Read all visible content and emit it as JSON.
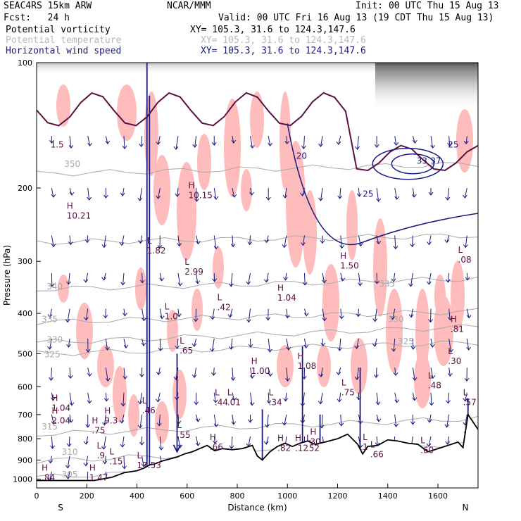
{
  "header": {
    "model": "SEAC4RS 15km ARW",
    "org": "NCAR/MMM",
    "init": "Init: 00 UTC Thu 15 Aug 13",
    "fcst": "Fcst:   24 h",
    "valid": "Valid: 00 UTC Fri 16 Aug 13 (19 CDT Thu 15 Aug 13)",
    "fields": [
      {
        "name": "Potential vorticity",
        "xy": "XY= 105.3, 31.6 to 124.3,147.6",
        "color": "#000000"
      },
      {
        "name": "Potential temperature",
        "xy": "XY= 105.3, 31.6 to 124.3,147.6",
        "color": "#b8b8b8"
      },
      {
        "name": "Horizontal wind speed",
        "xy": "XY= 105.3, 31.6 to 124.3,147.6",
        "color": "#1a1a80"
      }
    ]
  },
  "colors": {
    "pv_fill": "#ffbcbc",
    "isentrope": "#a9a9a9",
    "wind": "#1a1a80",
    "terrain": "#000000",
    "pv_contour": "#5a1040"
  },
  "chart_data": {
    "type": "cross-section",
    "xlabel": "Distance (km)",
    "ylabel": "Pressure (hPa)",
    "xlim": [
      0,
      1760
    ],
    "ylim": [
      1050,
      100
    ],
    "y_scale": "log",
    "x_ticks": [
      0,
      200,
      400,
      600,
      800,
      1000,
      1200,
      1400,
      1600
    ],
    "y_ticks": [
      100,
      200,
      300,
      400,
      500,
      600,
      700,
      800,
      900,
      1000
    ],
    "x_end_labels": {
      "left": "S",
      "right": "N"
    },
    "terrain": {
      "x": [
        0,
        230,
        300,
        350,
        400,
        430,
        450,
        470,
        500,
        530,
        560,
        590,
        620,
        650,
        680,
        710,
        740,
        780,
        820,
        860,
        880,
        900,
        930,
        960,
        990,
        1020,
        1050,
        1080,
        1110,
        1150,
        1200,
        1240,
        1280,
        1300,
        1320,
        1360,
        1400,
        1440,
        1480,
        1520,
        1560,
        1600,
        1640,
        1680,
        1700,
        1720,
        1760
      ],
      "p": [
        1008,
        1008,
        990,
        965,
        955,
        940,
        925,
        920,
        905,
        895,
        885,
        870,
        860,
        845,
        830,
        855,
        845,
        850,
        845,
        830,
        880,
        900,
        860,
        835,
        820,
        835,
        820,
        810,
        825,
        815,
        800,
        780,
        825,
        870,
        835,
        830,
        805,
        810,
        820,
        825,
        860,
        845,
        830,
        815,
        840,
        700,
        760
      ]
    },
    "isentropes": [
      {
        "theta": 305,
        "p_left": 990,
        "p_right": 890
      },
      {
        "theta": 310,
        "p_left": 905,
        "p_right": 820
      },
      {
        "theta": 315,
        "p_left": 780,
        "p_right": 715
      },
      {
        "theta": 325,
        "p_left": 500,
        "p_right": 470
      },
      {
        "theta": 330,
        "p_left": 470,
        "p_right": 430
      },
      {
        "theta": 335,
        "p_left": 420,
        "p_right": 395
      },
      {
        "theta": 340,
        "p_left": 350,
        "p_right": 330
      },
      {
        "theta": 345,
        "p_left": 270,
        "p_right": 260
      },
      {
        "theta": 350,
        "p_left": 185,
        "p_right": 175
      }
    ],
    "contour_labels": [
      {
        "text": "305",
        "x": 100,
        "p": 990,
        "color": "#a9a9a9"
      },
      {
        "text": "310",
        "x": 100,
        "p": 875,
        "color": "#a9a9a9"
      },
      {
        "text": "315",
        "x": 20,
        "p": 760,
        "color": "#a9a9a9"
      },
      {
        "text": "325",
        "x": 30,
        "p": 510,
        "color": "#a9a9a9"
      },
      {
        "text": "330",
        "x": 40,
        "p": 470,
        "color": "#a9a9a9"
      },
      {
        "text": "335",
        "x": 20,
        "p": 420,
        "color": "#a9a9a9"
      },
      {
        "text": "340",
        "x": 40,
        "p": 350,
        "color": "#a9a9a9"
      },
      {
        "text": "350",
        "x": 110,
        "p": 178,
        "color": "#a9a9a9"
      },
      {
        "text": "335",
        "x": 1365,
        "p": 345,
        "color": "#a9a9a9"
      },
      {
        "text": "330",
        "x": 1400,
        "p": 420,
        "color": "#a9a9a9"
      },
      {
        "text": "325",
        "x": 1440,
        "p": 475,
        "color": "#a9a9a9"
      },
      {
        "text": "1.5",
        "x": 55,
        "p": 160,
        "color": "#5a1040"
      },
      {
        "text": "20",
        "x": 1035,
        "p": 170,
        "color": "#1a1a80"
      },
      {
        "text": "25",
        "x": 1300,
        "p": 210,
        "color": "#1a1a80"
      },
      {
        "text": "33",
        "x": 1515,
        "p": 175,
        "color": "#1a1a80"
      },
      {
        "text": "37",
        "x": 1570,
        "p": 175,
        "color": "#1a1a80"
      },
      {
        "text": "25",
        "x": 1640,
        "p": 160,
        "color": "#1a1a80"
      }
    ],
    "extrema": [
      {
        "type": "H",
        "value": "10.21",
        "x": 120,
        "p": 235
      },
      {
        "type": "L",
        "value": "1.82",
        "x": 440,
        "p": 285
      },
      {
        "type": "H",
        "value": "10.15",
        "x": 605,
        "p": 210
      },
      {
        "type": "L",
        "value": "2.99",
        "x": 590,
        "p": 320
      },
      {
        "type": "L",
        "value": "1.0",
        "x": 510,
        "p": 410
      },
      {
        "type": "L",
        "value": ".42",
        "x": 720,
        "p": 390
      },
      {
        "type": "H",
        "value": "1.04",
        "x": 960,
        "p": 370
      },
      {
        "type": "H",
        "value": "1.50",
        "x": 1210,
        "p": 310
      },
      {
        "type": "L",
        "value": ".08",
        "x": 1680,
        "p": 300
      },
      {
        "type": "H",
        "value": ".81",
        "x": 1650,
        "p": 440
      },
      {
        "type": "L",
        "value": ".65",
        "x": 570,
        "p": 495
      },
      {
        "type": "H",
        "value": "1.00",
        "x": 855,
        "p": 555
      },
      {
        "type": "H",
        "value": "1.08",
        "x": 1040,
        "p": 540
      },
      {
        "type": "L",
        "value": ".30",
        "x": 1640,
        "p": 525
      },
      {
        "type": "L",
        "value": ".48",
        "x": 1560,
        "p": 600
      },
      {
        "type": "L",
        "value": ".75",
        "x": 1215,
        "p": 625
      },
      {
        "type": "L",
        "value": ".34",
        "x": 925,
        "p": 660
      },
      {
        "type": "L",
        "value": ".44",
        "x": 710,
        "p": 660
      },
      {
        "type": "L",
        "value": ".01",
        "x": 760,
        "p": 660
      },
      {
        "type": "L",
        "value": ".57",
        "x": 1700,
        "p": 660
      },
      {
        "type": "H",
        "value": "1.04",
        "x": 60,
        "p": 680
      },
      {
        "type": "L",
        "value": ".46",
        "x": 420,
        "p": 690
      },
      {
        "type": "H",
        "value": "2.04",
        "x": 60,
        "p": 730
      },
      {
        "type": "H",
        "value": "9.3",
        "x": 270,
        "p": 730
      },
      {
        "type": "H",
        "value": ".75",
        "x": 220,
        "p": 770
      },
      {
        "type": "L",
        "value": ".55",
        "x": 560,
        "p": 790
      },
      {
        "type": "H",
        "value": ".66",
        "x": 690,
        "p": 845
      },
      {
        "type": "H",
        "value": "30",
        "x": 1090,
        "p": 820
      },
      {
        "type": "H",
        "value": ".12",
        "x": 1030,
        "p": 850
      },
      {
        "type": "H",
        "value": ".82",
        "x": 960,
        "p": 850
      },
      {
        "type": "L",
        "value": ".52",
        "x": 1075,
        "p": 850
      },
      {
        "type": "L",
        "value": "1",
        "x": 1300,
        "p": 845
      },
      {
        "type": "L",
        "value": ".66",
        "x": 1330,
        "p": 880
      },
      {
        "type": "L",
        "value": ".60",
        "x": 1530,
        "p": 860
      },
      {
        "type": "L",
        "value": ".9",
        "x": 240,
        "p": 885
      },
      {
        "type": "L",
        "value": ".15",
        "x": 290,
        "p": 915
      },
      {
        "type": "L",
        "value": "17.53",
        "x": 400,
        "p": 935
      },
      {
        "type": "H",
        "value": ".84",
        "x": 20,
        "p": 1000
      },
      {
        "type": "H",
        "value": "1.47",
        "x": 210,
        "p": 1000
      }
    ]
  }
}
